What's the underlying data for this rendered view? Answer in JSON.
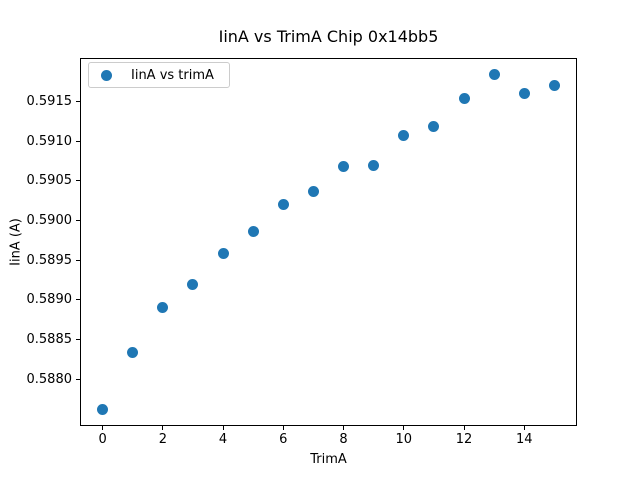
{
  "chart_data": {
    "type": "scatter",
    "title": "IinA vs TrimA Chip 0x14bb5",
    "xlabel": "TrimA",
    "ylabel": "IinA (A)",
    "legend": {
      "label": "IinA vs trimA",
      "position": "upper left"
    },
    "marker_color": "#1f77b4",
    "grid": false,
    "x": [
      0,
      1,
      2,
      3,
      4,
      5,
      6,
      7,
      8,
      9,
      10,
      11,
      12,
      13,
      14,
      15
    ],
    "y": [
      0.58762,
      0.58834,
      0.5889,
      0.5892,
      0.58959,
      0.58986,
      0.5902,
      0.59037,
      0.59068,
      0.5907,
      0.59107,
      0.59119,
      0.59154,
      0.59184,
      0.5916,
      0.5917
    ],
    "xlim": [
      -0.75,
      15.75
    ],
    "ylim": [
      0.58741,
      0.59205
    ],
    "x_ticks": [
      {
        "value": 0,
        "label": "0"
      },
      {
        "value": 2,
        "label": "2"
      },
      {
        "value": 4,
        "label": "4"
      },
      {
        "value": 6,
        "label": "6"
      },
      {
        "value": 8,
        "label": "8"
      },
      {
        "value": 10,
        "label": "10"
      },
      {
        "value": 12,
        "label": "12"
      },
      {
        "value": 14,
        "label": "14"
      }
    ],
    "y_ticks": [
      {
        "value": 0.588,
        "label": "0.5880"
      },
      {
        "value": 0.5885,
        "label": "0.5885"
      },
      {
        "value": 0.589,
        "label": "0.5890"
      },
      {
        "value": 0.5895,
        "label": "0.5895"
      },
      {
        "value": 0.59,
        "label": "0.5900"
      },
      {
        "value": 0.5905,
        "label": "0.5905"
      },
      {
        "value": 0.591,
        "label": "0.5910"
      },
      {
        "value": 0.5915,
        "label": "0.5915"
      }
    ]
  }
}
